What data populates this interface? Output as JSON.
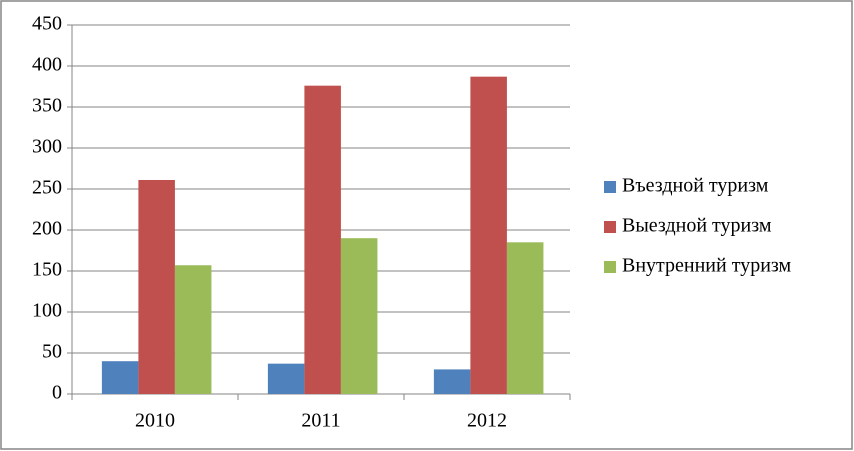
{
  "chart_data": {
    "type": "bar",
    "categories": [
      "2010",
      "2011",
      "2012"
    ],
    "series": [
      {
        "name": "Въездной туризм",
        "color": "#4f81bd",
        "values": [
          40,
          37,
          30
        ]
      },
      {
        "name": "Выездной туризм",
        "color": "#c0504d",
        "values": [
          261,
          376,
          387
        ]
      },
      {
        "name": "Внутренний туризм",
        "color": "#9bbb59",
        "values": [
          157,
          190,
          185
        ]
      }
    ],
    "ylim": [
      0,
      450
    ],
    "yticks": [
      0,
      50,
      100,
      150,
      200,
      250,
      300,
      350,
      400,
      450
    ],
    "grid": true,
    "legend": "right"
  }
}
